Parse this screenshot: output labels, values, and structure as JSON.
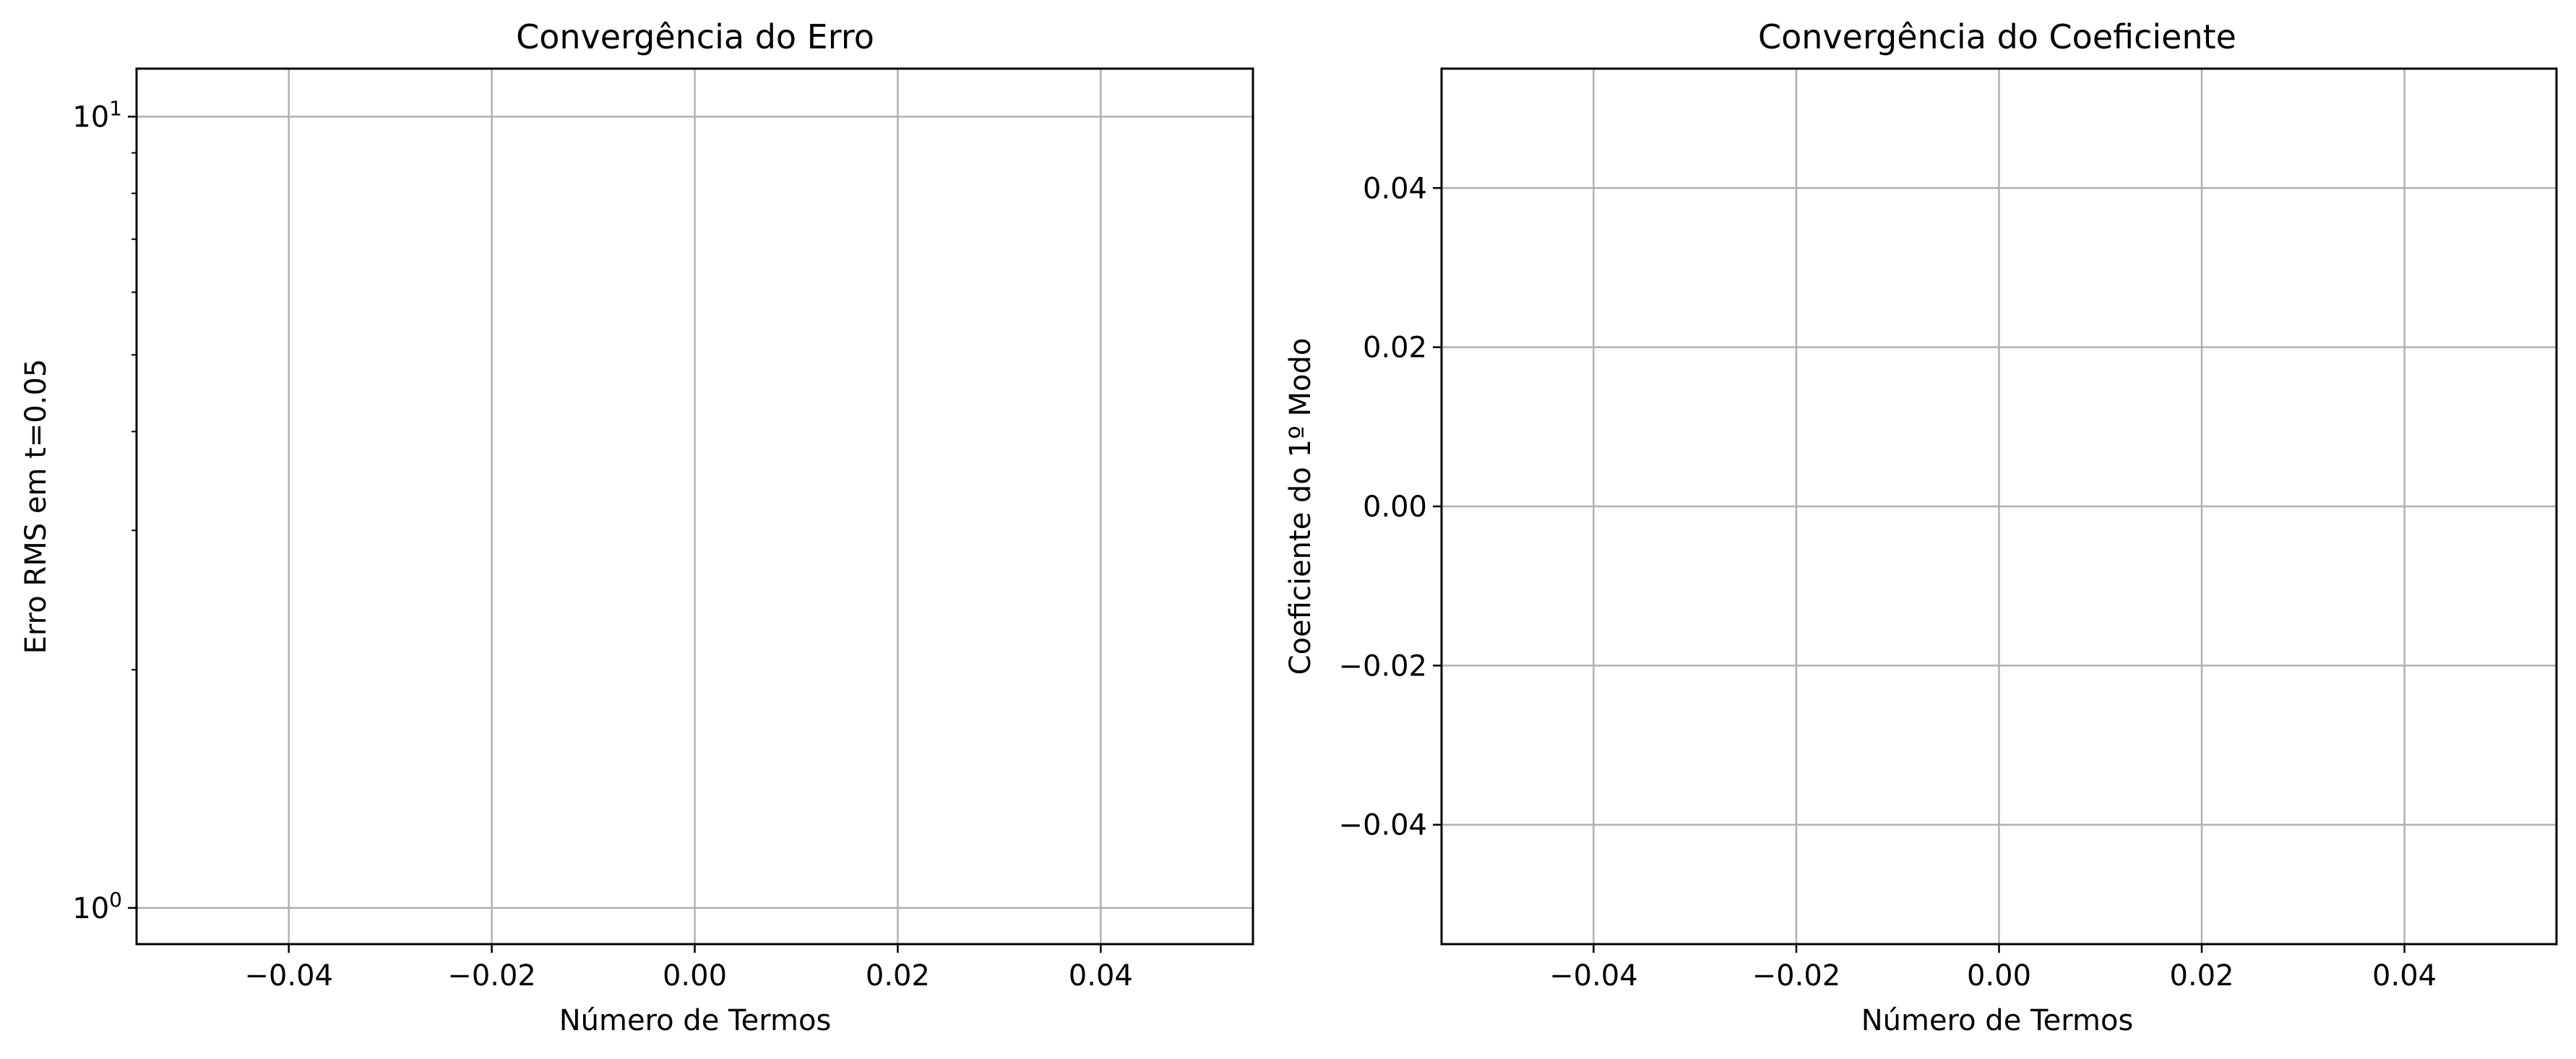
{
  "chart_data": [
    {
      "type": "line",
      "title": "Convergência do Erro",
      "xlabel": "Número de Termos",
      "ylabel": "Erro RMS em t=0.05",
      "xlim": [
        -0.055,
        0.055
      ],
      "ylim": [
        0.9,
        11.5
      ],
      "yscale": "log",
      "xticks": [
        -0.04,
        -0.02,
        0.0,
        0.02,
        0.04
      ],
      "xtick_labels": [
        "−0.04",
        "−0.02",
        "0.00",
        "0.02",
        "0.04"
      ],
      "yticks": [
        10,
        1
      ],
      "ytick_labels": [
        {
          "base": "10",
          "exp": "1"
        },
        {
          "base": "10",
          "exp": "0"
        }
      ],
      "grid": true,
      "series": []
    },
    {
      "type": "line",
      "title": "Convergência do Coeficiente",
      "xlabel": "Número de Termos",
      "ylabel": "Coeficiente do 1º Modo",
      "xlim": [
        -0.055,
        0.055
      ],
      "ylim": [
        -0.055,
        0.055
      ],
      "yscale": "linear",
      "xticks": [
        -0.04,
        -0.02,
        0.0,
        0.02,
        0.04
      ],
      "xtick_labels": [
        "−0.04",
        "−0.02",
        "0.00",
        "0.02",
        "0.04"
      ],
      "yticks": [
        0.04,
        0.02,
        0.0,
        -0.02,
        -0.04
      ],
      "ytick_labels": [
        "0.04",
        "0.02",
        "0.00",
        "−0.02",
        "−0.04"
      ],
      "grid": true,
      "series": []
    }
  ],
  "colors": {
    "grid": "#b0b0b0",
    "axes": "#000000",
    "background": "#ffffff"
  }
}
